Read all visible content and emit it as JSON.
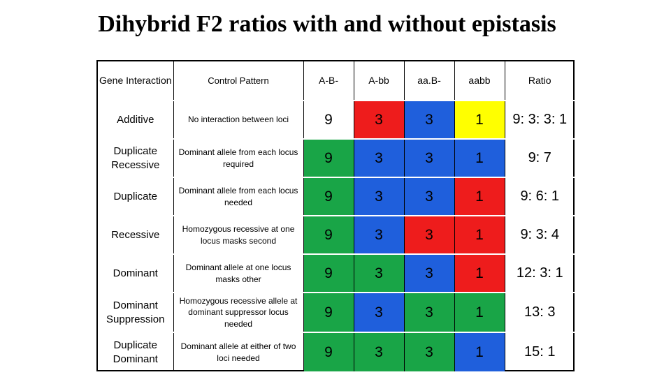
{
  "title": "Dihybrid F2 ratios with and without epistasis",
  "colors": {
    "red": "#ee1c1c",
    "blue": "#1f5fdc",
    "green": "#19a547",
    "yellow": "#ffff00"
  },
  "table": {
    "headers": [
      "Gene Interaction",
      "Control Pattern",
      "A-B-",
      "A-bb",
      "aa.B-",
      "aabb",
      "Ratio"
    ],
    "rows": [
      {
        "interaction": "Additive",
        "control": "No interaction between loci",
        "ab": "9",
        "abb": "3",
        "aab": "3",
        "aabb": "1",
        "ratio": "9: 3: 3: 1",
        "fills": [
          "white",
          "red",
          "blue",
          "yellow"
        ]
      },
      {
        "interaction": "Duplicate Recessive",
        "control": "Dominant allele from each locus required",
        "ab": "9",
        "abb": "3",
        "aab": "3",
        "aabb": "1",
        "ratio": "9: 7",
        "fills": [
          "green",
          "blue",
          "blue",
          "blue"
        ]
      },
      {
        "interaction": "Duplicate",
        "control": "Dominant allele from each locus needed",
        "ab": "9",
        "abb": "3",
        "aab": "3",
        "aabb": "1",
        "ratio": "9: 6: 1",
        "fills": [
          "green",
          "blue",
          "blue",
          "red"
        ]
      },
      {
        "interaction": "Recessive",
        "control": "Homozygous recessive at one locus masks second",
        "ab": "9",
        "abb": "3",
        "aab": "3",
        "aabb": "1",
        "ratio": "9: 3: 4",
        "fills": [
          "green",
          "blue",
          "red",
          "red"
        ]
      },
      {
        "interaction": "Dominant",
        "control": "Dominant allele at one locus masks other",
        "ab": "9",
        "abb": "3",
        "aab": "3",
        "aabb": "1",
        "ratio": "12: 3: 1",
        "fills": [
          "green",
          "green",
          "blue",
          "red"
        ]
      },
      {
        "interaction": "Dominant Suppression",
        "control": "Homozygous recessive allele at dominant suppressor locus needed",
        "ab": "9",
        "abb": "3",
        "aab": "3",
        "aabb": "1",
        "ratio": "13: 3",
        "fills": [
          "green",
          "blue",
          "green",
          "green"
        ]
      },
      {
        "interaction": "Duplicate Dominant",
        "control": "Dominant allele at either of two loci needed",
        "ab": "9",
        "abb": "3",
        "aab": "3",
        "aabb": "1",
        "ratio": "15: 1",
        "fills": [
          "green",
          "green",
          "green",
          "blue"
        ]
      }
    ]
  }
}
